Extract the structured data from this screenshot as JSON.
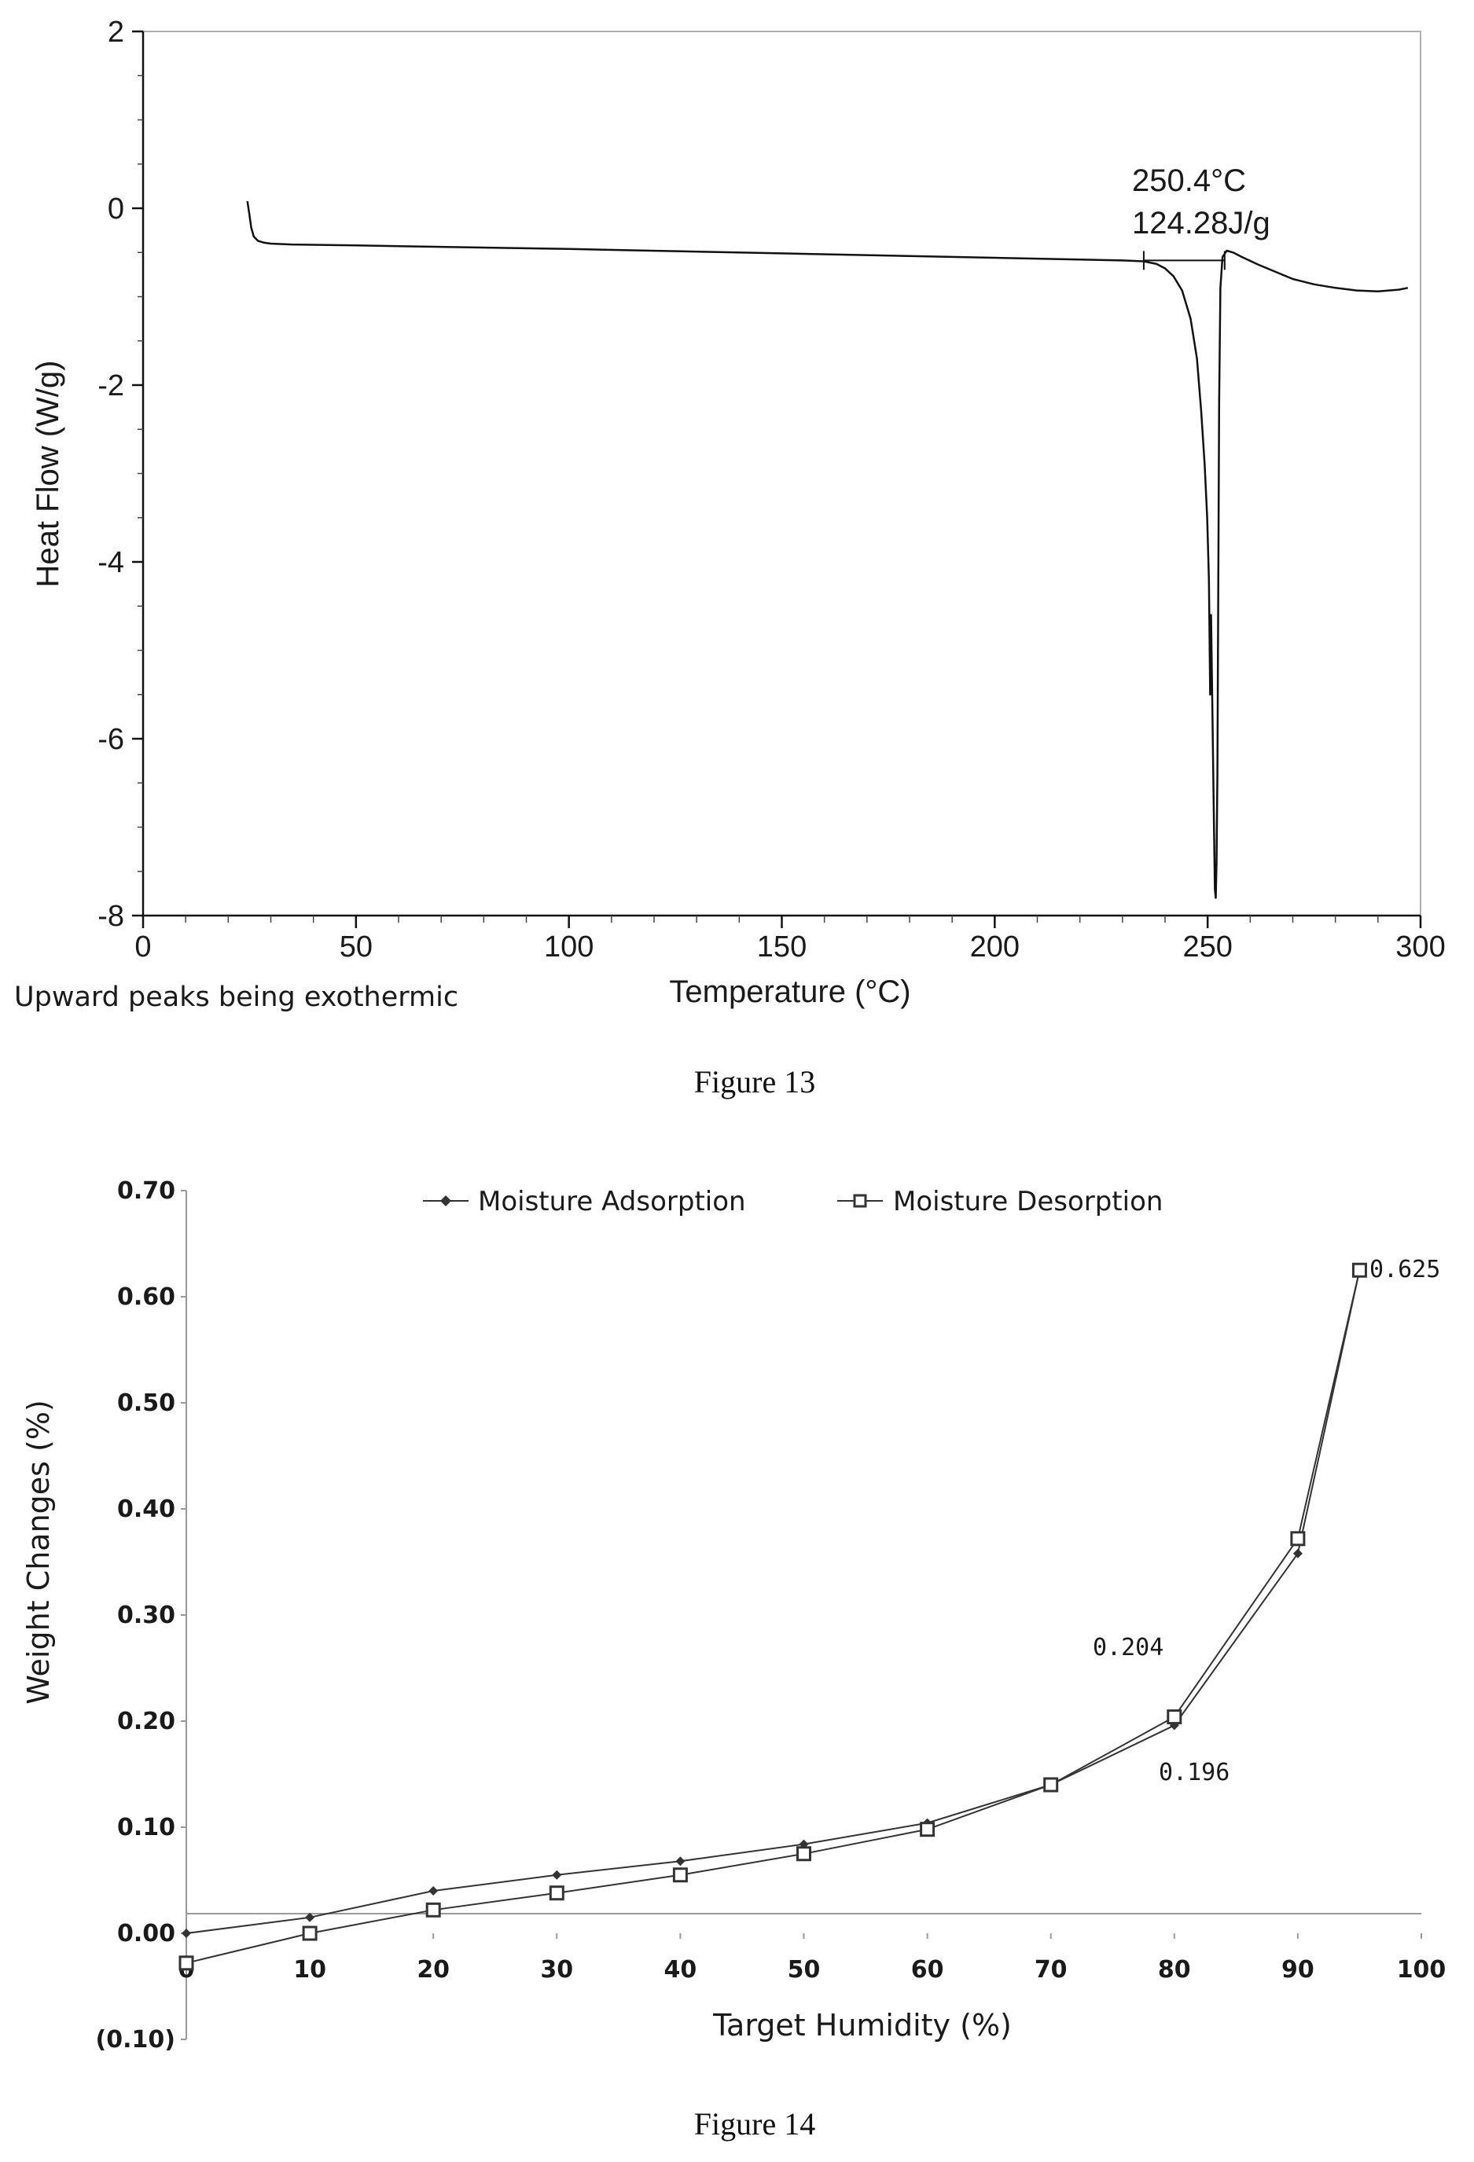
{
  "chart_data": [
    {
      "type": "line",
      "figure_label": "Figure 13",
      "xlabel": "Temperature (°C)",
      "ylabel": "Heat Flow (W/g)",
      "note": "Upward peaks being exothermic",
      "xlim": [
        0,
        300
      ],
      "ylim": [
        -8,
        2
      ],
      "xticks": [
        0,
        50,
        100,
        150,
        200,
        250,
        300
      ],
      "yticks": [
        2,
        0,
        -2,
        -4,
        -6,
        -8
      ],
      "x_tick_labels": [
        "0",
        "50",
        "100",
        "150",
        "200",
        "250",
        "300"
      ],
      "y_tick_labels": [
        "2",
        "0",
        "-2",
        "-4",
        "-6",
        "-8"
      ],
      "annotations": [
        "250.4°C",
        "124.28J/g"
      ],
      "color": "#111111",
      "series": [
        {
          "x": [
            24.5,
            24.9,
            25.4,
            26,
            27,
            28.5,
            30,
            35,
            50,
            100,
            150,
            200,
            230,
            235,
            238,
            240,
            242,
            244,
            246,
            247.5,
            248.5,
            249.3,
            249.9,
            250.3,
            250.6,
            250.8,
            251.1,
            251.4,
            251.7,
            251.9,
            252.1,
            252.3,
            252.5,
            252.7,
            253.0,
            253.5,
            254.5,
            256,
            258,
            262,
            266,
            270,
            275,
            280,
            285,
            290,
            295,
            297
          ],
          "y": [
            0.08,
            -0.05,
            -0.22,
            -0.32,
            -0.37,
            -0.39,
            -0.4,
            -0.41,
            -0.42,
            -0.46,
            -0.51,
            -0.56,
            -0.59,
            -0.6,
            -0.63,
            -0.68,
            -0.77,
            -0.93,
            -1.25,
            -1.7,
            -2.3,
            -2.9,
            -3.5,
            -4.2,
            -5.5,
            -4.6,
            -5.6,
            -6.7,
            -7.7,
            -7.8,
            -7.4,
            -6.4,
            -4.3,
            -2.2,
            -0.9,
            -0.55,
            -0.48,
            -0.5,
            -0.55,
            -0.64,
            -0.72,
            -0.8,
            -0.86,
            -0.9,
            -0.93,
            -0.94,
            -0.92,
            -0.9
          ]
        }
      ],
      "baseline": {
        "x": [
          235,
          254
        ],
        "y": [
          -0.59,
          -0.59
        ]
      }
    },
    {
      "type": "line",
      "figure_label": "Figure 14",
      "xlabel": "Target Humidity (%)",
      "ylabel": "Weight Changes (%)",
      "xlim": [
        0,
        100
      ],
      "ylim": [
        -0.1,
        0.7
      ],
      "x_tick_labels": [
        "0",
        "10",
        "20",
        "30",
        "40",
        "50",
        "60",
        "70",
        "80",
        "90",
        "100"
      ],
      "y_tick_labels": [
        "0.70",
        "0.60",
        "0.50",
        "0.40",
        "0.30",
        "0.20",
        "0.10",
        "0.00",
        "(0.10)"
      ],
      "legend_placement": "top-center",
      "annotations": [
        "0.625",
        "0.204",
        "0.196"
      ],
      "series": [
        {
          "name": "Moisture Adsorption",
          "marker": "diamond",
          "color": "#333333",
          "x": [
            0,
            10,
            20,
            30,
            40,
            50,
            60,
            70,
            80,
            90,
            95
          ],
          "y": [
            0.0,
            0.015,
            0.04,
            0.055,
            0.068,
            0.084,
            0.104,
            0.14,
            0.196,
            0.358,
            0.625
          ]
        },
        {
          "name": "Moisture Desorption",
          "marker": "square",
          "color": "#333333",
          "x": [
            0,
            10,
            20,
            30,
            40,
            50,
            60,
            70,
            80,
            90,
            95
          ],
          "y": [
            -0.028,
            0.0,
            0.022,
            0.038,
            0.055,
            0.075,
            0.098,
            0.14,
            0.204,
            0.372,
            0.625
          ]
        }
      ]
    }
  ]
}
